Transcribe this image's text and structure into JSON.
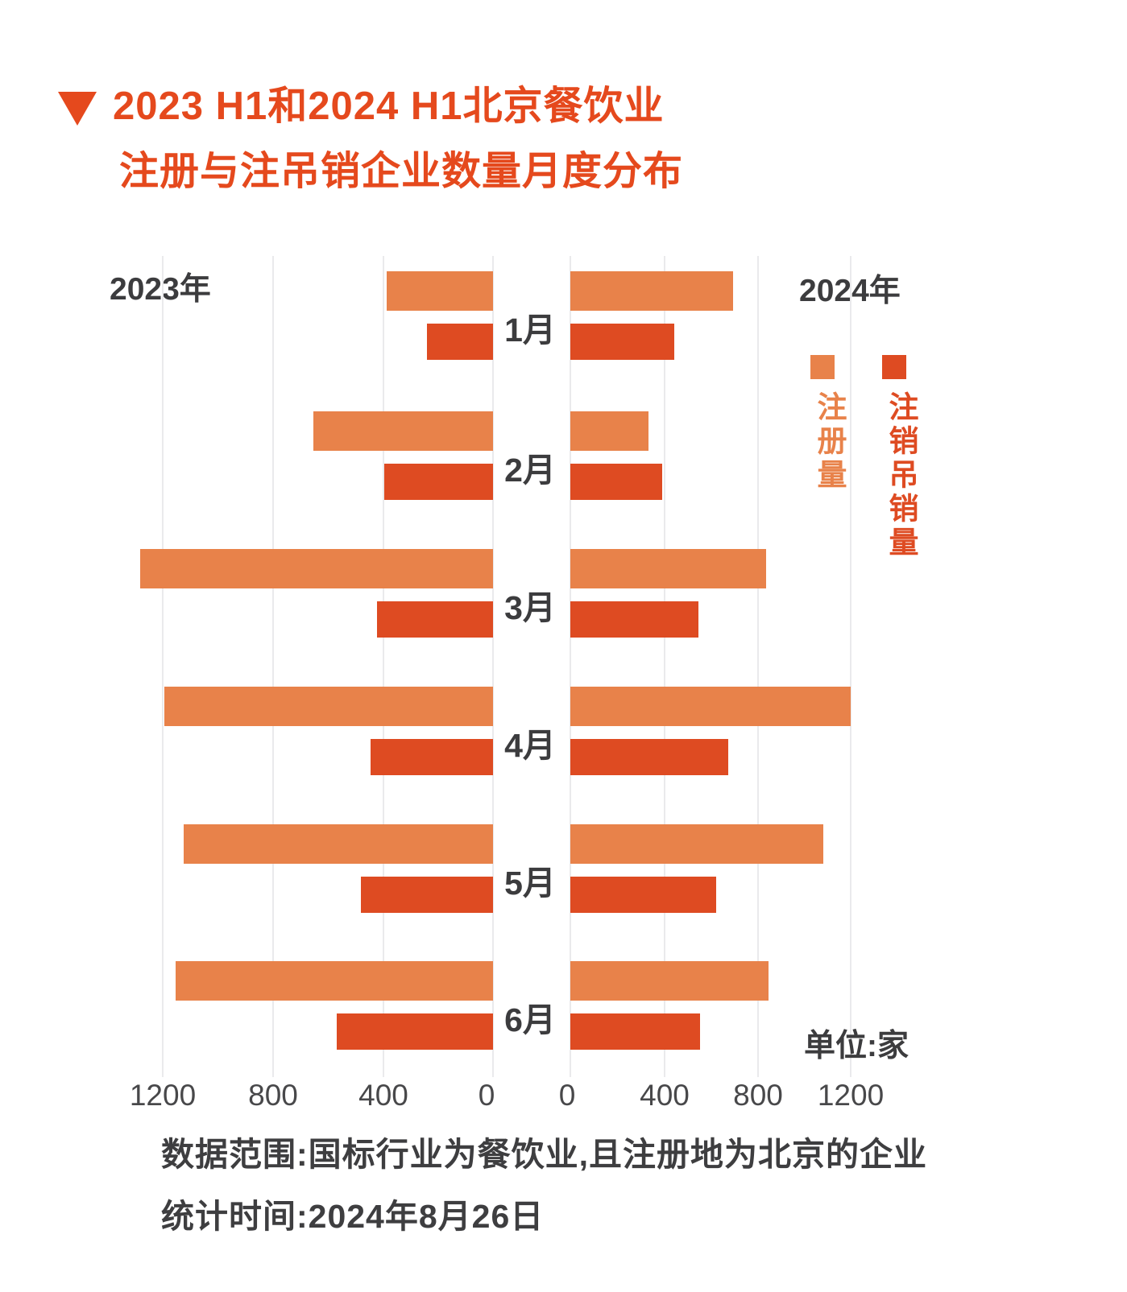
{
  "title": {
    "line1": "2023 H1和2024 H1北京餐饮业",
    "line2": "注册与注吊销企业数量月度分布"
  },
  "left_year": "2023年",
  "right_year": "2024年",
  "unit_label": "单位:家",
  "legend": {
    "items": [
      {
        "label": "注册量",
        "color": "#E8824A"
      },
      {
        "label": "注销吊销量",
        "color": "#DE4B22"
      }
    ]
  },
  "colors": {
    "accent": "#E5491D",
    "reg": "#E8824A",
    "dereg": "#DE4B22",
    "grid": "#EAEAEC",
    "text_dark": "#3C3C3E",
    "tick_text": "#48484A"
  },
  "axis": {
    "left_ticks": [
      "1200",
      "800",
      "400",
      "0"
    ],
    "right_ticks": [
      "0",
      "400",
      "800",
      "1200"
    ]
  },
  "footer": {
    "line1": "数据范围:国标行业为餐饮业,且注册地为北京的企业",
    "line2": "统计时间:2024年8月26日"
  },
  "chart_data": {
    "type": "bar",
    "orientation": "horizontal-diverging-pyramid",
    "title": "2023 H1和2024 H1北京餐饮业注册与注吊销企业数量月度分布",
    "unit": "家",
    "categories": [
      "1月",
      "2月",
      "3月",
      "4月",
      "5月",
      "6月"
    ],
    "series": [
      {
        "name": "2023年注册量",
        "year": "2023",
        "key": "reg",
        "side": "left",
        "values": [
          385,
          650,
          1280,
          1190,
          1120,
          1150
        ]
      },
      {
        "name": "2023年注销吊销量",
        "year": "2023",
        "key": "dereg",
        "side": "left",
        "values": [
          240,
          395,
          420,
          445,
          480,
          565
        ]
      },
      {
        "name": "2024年注册量",
        "year": "2024",
        "key": "reg",
        "side": "right",
        "values": [
          690,
          330,
          830,
          1190,
          1075,
          840
        ]
      },
      {
        "name": "2024年注销吊销量",
        "year": "2024",
        "key": "dereg",
        "side": "right",
        "values": [
          440,
          390,
          545,
          670,
          620,
          550
        ]
      }
    ],
    "xlim_left": [
      1400,
      0
    ],
    "xlim_right": [
      0,
      1400
    ],
    "grid": true,
    "legend_position": "right-top"
  }
}
